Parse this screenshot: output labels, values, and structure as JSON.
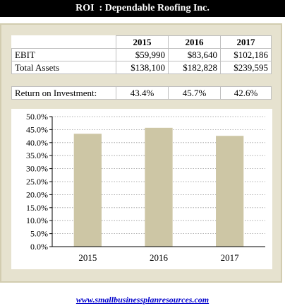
{
  "header": {
    "title": "ROI  : Dependable Roofing Inc."
  },
  "table": {
    "years": [
      "2015",
      "2016",
      "2017"
    ],
    "rows": [
      {
        "label": "EBIT",
        "values": [
          "$59,990",
          "$83,640",
          "$102,186"
        ]
      },
      {
        "label": "Total Assets",
        "values": [
          "$138,100",
          "$182,828",
          "$239,595"
        ]
      }
    ]
  },
  "roi": {
    "label": "Return on Investment:",
    "values": [
      "43.4%",
      "45.7%",
      "42.6%"
    ]
  },
  "chart_data": {
    "type": "bar",
    "categories": [
      "2015",
      "2016",
      "2017"
    ],
    "values": [
      43.4,
      45.7,
      42.6
    ],
    "ylim": [
      0,
      50
    ],
    "yticks": [
      "0.0%",
      "5.0%",
      "10.0%",
      "15.0%",
      "20.0%",
      "25.0%",
      "30.0%",
      "35.0%",
      "40.0%",
      "45.0%",
      "50.0%"
    ],
    "ytick_step": 5,
    "grid": true,
    "legend": "none",
    "title": "",
    "xlabel": "",
    "ylabel": "",
    "bar_color": "#cdc6a5"
  },
  "footer": {
    "link": "www.smallbusinessplanresources.com"
  }
}
